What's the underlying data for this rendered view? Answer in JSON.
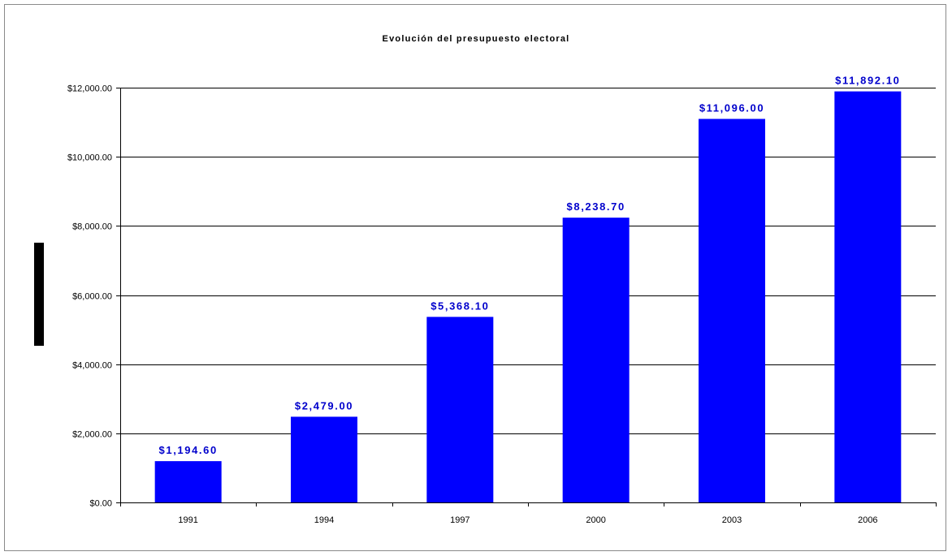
{
  "chart_data": {
    "type": "bar",
    "title": "Evolución del presupuesto electoral",
    "xlabel": "",
    "ylabel": "",
    "categories": [
      "1991",
      "1994",
      "1997",
      "2000",
      "2003",
      "2006"
    ],
    "values": [
      1194.6,
      2479.0,
      5368.1,
      8238.7,
      11096.0,
      11892.1
    ],
    "data_labels": [
      "$1,194.60",
      "$2,479.00",
      "$5,368.10",
      "$8,238.70",
      "$11,096.00",
      "$11,892.10"
    ],
    "ylim": [
      0,
      12000
    ],
    "yticks": [
      0,
      2000,
      4000,
      6000,
      8000,
      10000,
      12000
    ],
    "ytick_labels": [
      "$0.00",
      "$2,000.00",
      "$4,000.00",
      "$6,000.00",
      "$8,000.00",
      "$10,000.00",
      "$12,000.00"
    ],
    "grid": true,
    "legend": "none",
    "bar_color": "#0000FF",
    "label_color": "#0000CC"
  }
}
